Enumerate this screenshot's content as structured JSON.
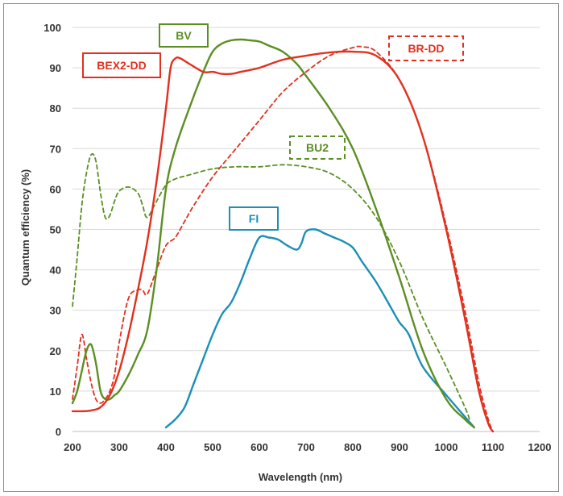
{
  "chart_data": {
    "type": "line",
    "xlabel": "Wavelength (nm)",
    "ylabel": "Quantum efficiency (%)",
    "xlim": [
      200,
      1200
    ],
    "ylim": [
      0,
      100
    ],
    "xticks": [
      200,
      300,
      400,
      500,
      600,
      700,
      800,
      900,
      1000,
      1100,
      1200
    ],
    "yticks": [
      0,
      10,
      20,
      30,
      40,
      50,
      60,
      70,
      80,
      90,
      100
    ],
    "grid": "horizontal",
    "series": [
      {
        "name": "BV",
        "color": "#5b8f22",
        "dash": false,
        "x": [
          200,
          210,
          220,
          230,
          240,
          250,
          260,
          270,
          280,
          290,
          300,
          320,
          340,
          360,
          380,
          400,
          420,
          450,
          480,
          500,
          520,
          540,
          560,
          580,
          600,
          620,
          650,
          680,
          700,
          750,
          800,
          850,
          900,
          950,
          1000,
          1040,
          1060
        ],
        "y": [
          7,
          10,
          15,
          20,
          21.5,
          17,
          10,
          8,
          8,
          9,
          10,
          14,
          19,
          25,
          40,
          60,
          70,
          80,
          89,
          94,
          96,
          96.8,
          97,
          96.8,
          96.5,
          95.5,
          94,
          91,
          88,
          80,
          70,
          55,
          38,
          20,
          8,
          3,
          1
        ]
      },
      {
        "name": "BEX2-DD",
        "color": "#e2301e",
        "dash": false,
        "x": [
          200,
          220,
          240,
          260,
          280,
          300,
          320,
          340,
          360,
          380,
          400,
          410,
          420,
          430,
          450,
          480,
          500,
          520,
          540,
          560,
          600,
          650,
          700,
          750,
          800,
          850,
          900,
          950,
          1000,
          1040,
          1070,
          1090,
          1100
        ],
        "y": [
          5,
          5,
          5.2,
          6,
          9,
          15,
          24,
          35,
          47,
          62,
          80,
          90,
          92.3,
          92.4,
          91,
          89,
          89,
          88.5,
          88.5,
          89,
          90,
          92,
          93,
          93.8,
          94,
          93,
          87,
          73,
          50,
          28,
          10,
          2,
          0
        ]
      },
      {
        "name": "BR-DD",
        "color": "#e2301e",
        "dash": true,
        "x": [
          200,
          210,
          220,
          230,
          240,
          250,
          260,
          270,
          280,
          290,
          300,
          320,
          340,
          350,
          360,
          380,
          400,
          420,
          440,
          460,
          500,
          550,
          600,
          650,
          700,
          750,
          800,
          820,
          850,
          900,
          950,
          1000,
          1040,
          1070,
          1090,
          1100
        ],
        "y": [
          8,
          16,
          24,
          18,
          12,
          8,
          7,
          8,
          10,
          14,
          22,
          33,
          35,
          35,
          34,
          40,
          46,
          48,
          52,
          56,
          63,
          70,
          77,
          84,
          89,
          93,
          95,
          95.2,
          94,
          87,
          73,
          51,
          30,
          12,
          3,
          0
        ]
      },
      {
        "name": "BU2",
        "color": "#5b8f22",
        "dash": true,
        "x": [
          200,
          210,
          220,
          230,
          240,
          250,
          260,
          270,
          280,
          290,
          300,
          320,
          340,
          350,
          360,
          380,
          400,
          420,
          450,
          500,
          550,
          600,
          650,
          700,
          750,
          800,
          850,
          900,
          950,
          1000,
          1040,
          1050
        ],
        "y": [
          31,
          43,
          56,
          64,
          68.5,
          67,
          59,
          53,
          53.5,
          57,
          59.5,
          60.5,
          59,
          56,
          53,
          57,
          61,
          62.5,
          63.5,
          65,
          65.5,
          65.5,
          66,
          65.5,
          64,
          60,
          53,
          42,
          28,
          16,
          6,
          3
        ]
      },
      {
        "name": "FI",
        "color": "#1b8fb5",
        "dash": false,
        "x": [
          400,
          420,
          440,
          460,
          480,
          500,
          520,
          540,
          560,
          580,
          600,
          620,
          640,
          660,
          680,
          690,
          700,
          720,
          740,
          760,
          780,
          800,
          820,
          850,
          880,
          900,
          920,
          950,
          1000,
          1060
        ],
        "y": [
          1,
          3,
          6,
          12,
          18,
          24,
          29,
          32,
          37,
          43,
          48,
          48,
          47.5,
          46,
          45,
          46.5,
          49.5,
          50,
          49,
          48,
          47,
          45.5,
          42,
          37,
          31,
          27,
          24,
          16,
          9,
          1
        ]
      }
    ],
    "labels": [
      {
        "text": "BV",
        "series": "BV",
        "style": "solid"
      },
      {
        "text": "BEX2-DD",
        "series": "BEX2-DD",
        "style": "solid"
      },
      {
        "text": "BR-DD",
        "series": "BR-DD",
        "style": "dashed"
      },
      {
        "text": "BU2",
        "series": "BU2",
        "style": "dashed"
      },
      {
        "text": "FI",
        "series": "FI",
        "style": "solid"
      }
    ]
  }
}
